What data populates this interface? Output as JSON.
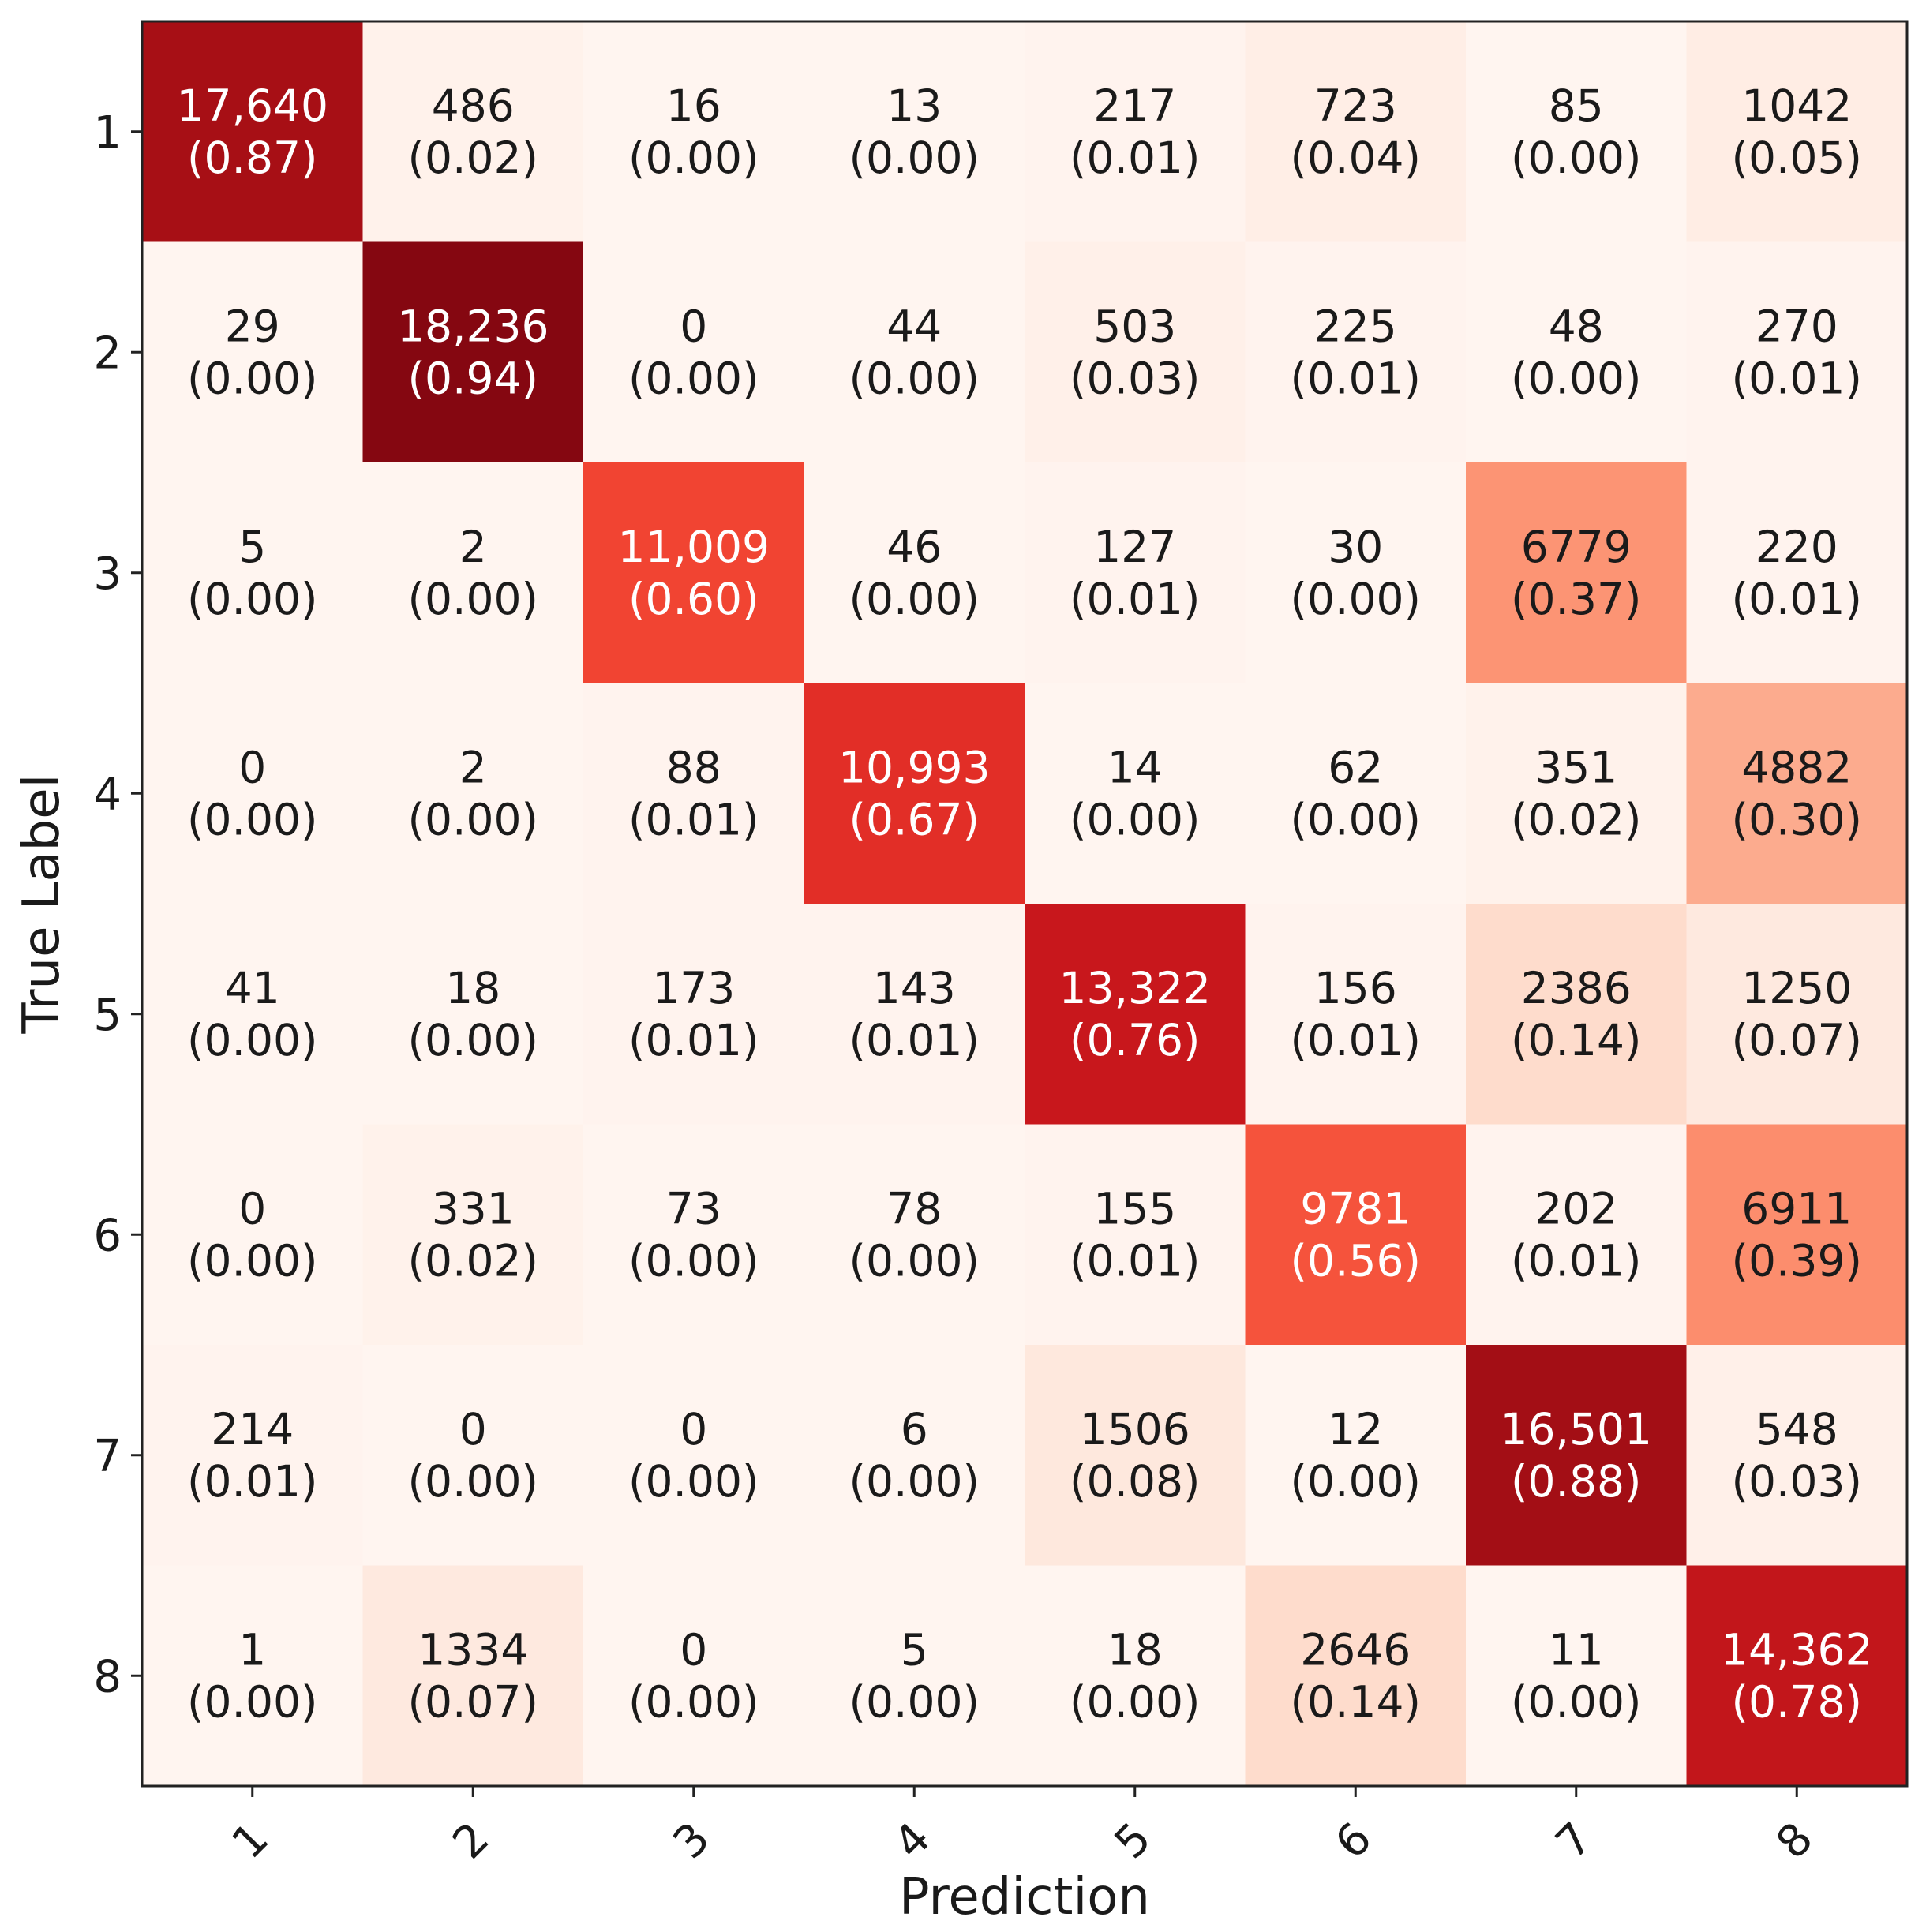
{
  "chart_data": {
    "type": "heatmap",
    "title": "",
    "xlabel": "Prediction",
    "ylabel": "True Label",
    "x_categories": [
      "1",
      "2",
      "3",
      "4",
      "5",
      "6",
      "7",
      "8"
    ],
    "y_categories": [
      "1",
      "2",
      "3",
      "4",
      "5",
      "6",
      "7",
      "8"
    ],
    "counts": [
      [
        "17,640",
        "486",
        "16",
        "13",
        "217",
        "723",
        "85",
        "1042"
      ],
      [
        "29",
        "18,236",
        "0",
        "44",
        "503",
        "225",
        "48",
        "270"
      ],
      [
        "5",
        "2",
        "11,009",
        "46",
        "127",
        "30",
        "6779",
        "220"
      ],
      [
        "0",
        "2",
        "88",
        "10,993",
        "14",
        "62",
        "351",
        "4882"
      ],
      [
        "41",
        "18",
        "173",
        "143",
        "13,322",
        "156",
        "2386",
        "1250"
      ],
      [
        "0",
        "331",
        "73",
        "78",
        "155",
        "9781",
        "202",
        "6911"
      ],
      [
        "214",
        "0",
        "0",
        "6",
        "1506",
        "12",
        "16,501",
        "548"
      ],
      [
        "1",
        "1334",
        "0",
        "5",
        "18",
        "2646",
        "11",
        "14,362"
      ]
    ],
    "fractions": [
      [
        "(0.87)",
        "(0.02)",
        "(0.00)",
        "(0.00)",
        "(0.01)",
        "(0.04)",
        "(0.00)",
        "(0.05)"
      ],
      [
        "(0.00)",
        "(0.94)",
        "(0.00)",
        "(0.00)",
        "(0.03)",
        "(0.01)",
        "(0.00)",
        "(0.01)"
      ],
      [
        "(0.00)",
        "(0.00)",
        "(0.60)",
        "(0.00)",
        "(0.01)",
        "(0.00)",
        "(0.37)",
        "(0.01)"
      ],
      [
        "(0.00)",
        "(0.00)",
        "(0.01)",
        "(0.67)",
        "(0.00)",
        "(0.00)",
        "(0.02)",
        "(0.30)"
      ],
      [
        "(0.00)",
        "(0.00)",
        "(0.01)",
        "(0.01)",
        "(0.76)",
        "(0.01)",
        "(0.14)",
        "(0.07)"
      ],
      [
        "(0.00)",
        "(0.02)",
        "(0.00)",
        "(0.00)",
        "(0.01)",
        "(0.56)",
        "(0.01)",
        "(0.39)"
      ],
      [
        "(0.01)",
        "(0.00)",
        "(0.00)",
        "(0.00)",
        "(0.08)",
        "(0.00)",
        "(0.88)",
        "(0.03)"
      ],
      [
        "(0.00)",
        "(0.07)",
        "(0.00)",
        "(0.00)",
        "(0.00)",
        "(0.14)",
        "(0.00)",
        "(0.78)"
      ]
    ],
    "fraction_values": [
      [
        0.87,
        0.02,
        0.0,
        0.0,
        0.01,
        0.04,
        0.0,
        0.05
      ],
      [
        0.0,
        0.94,
        0.0,
        0.0,
        0.03,
        0.01,
        0.0,
        0.01
      ],
      [
        0.0,
        0.0,
        0.6,
        0.0,
        0.01,
        0.0,
        0.37,
        0.01
      ],
      [
        0.0,
        0.0,
        0.01,
        0.67,
        0.0,
        0.0,
        0.02,
        0.3
      ],
      [
        0.0,
        0.0,
        0.01,
        0.01,
        0.76,
        0.01,
        0.14,
        0.07
      ],
      [
        0.0,
        0.02,
        0.0,
        0.0,
        0.01,
        0.56,
        0.01,
        0.39
      ],
      [
        0.01,
        0.0,
        0.0,
        0.0,
        0.08,
        0.0,
        0.88,
        0.03
      ],
      [
        0.0,
        0.07,
        0.0,
        0.0,
        0.0,
        0.14,
        0.0,
        0.78
      ]
    ],
    "colormap": "Reds",
    "value_range": [
      0,
      1
    ],
    "grid": false,
    "colors": {
      "text_dark": "#1a1a1a",
      "text_light": "#ffffff",
      "frame": "#222222"
    }
  }
}
